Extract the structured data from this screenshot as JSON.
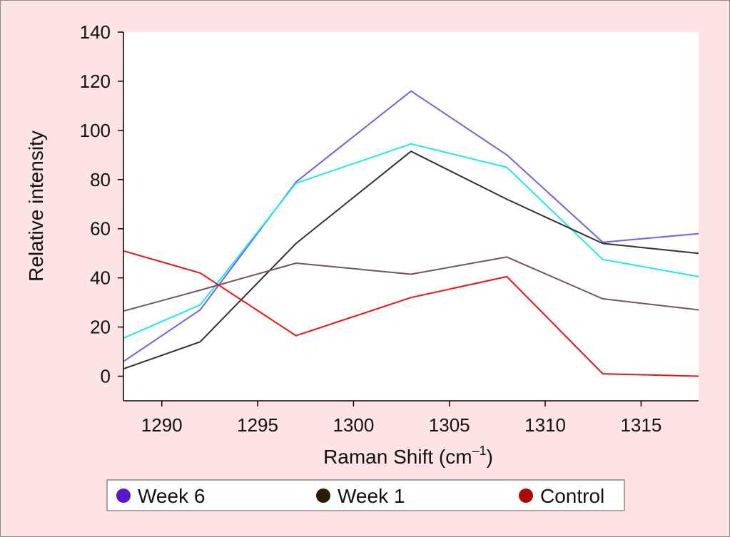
{
  "chart_data": {
    "type": "line",
    "title": "",
    "xlabel_main": "Raman Shift (cm",
    "xlabel_sup": "–1",
    "xlabel_end": ")",
    "ylabel": "Relative intensity",
    "xlim": [
      1288,
      1318
    ],
    "ylim": [
      -10,
      140
    ],
    "x_ticks": [
      "1290",
      "1295",
      "1300",
      "1305",
      "1310",
      "1315"
    ],
    "y_ticks": [
      "0",
      "20",
      "40",
      "60",
      "80",
      "100",
      "120",
      "140"
    ],
    "grid": false,
    "legend_position": "bottom",
    "x": [
      1288,
      1292,
      1297,
      1303,
      1308,
      1313,
      1318
    ],
    "series": [
      {
        "name": "Week 6",
        "color": "#7060f0",
        "legend_color": "#5a16c8",
        "in_legend": true,
        "values": [
          6,
          27,
          79,
          116,
          90,
          54.5,
          58
        ]
      },
      {
        "name": "",
        "color": "#20e8f0",
        "in_legend": false,
        "values": [
          15.5,
          29,
          78.5,
          94.5,
          85,
          47.5,
          40.5
        ]
      },
      {
        "name": "Week 1",
        "color": "#303030",
        "legend_color": "#2a1d06",
        "in_legend": true,
        "values": [
          3,
          14,
          54,
          91.5,
          72,
          54,
          50
        ]
      },
      {
        "name": "",
        "color": "#7a5060",
        "in_legend": false,
        "values": [
          26.5,
          35,
          46,
          41.5,
          48.5,
          31.5,
          27
        ]
      },
      {
        "name": "Control",
        "color": "#f01010",
        "legend_color": "#a80a0a",
        "in_legend": true,
        "values": [
          51,
          42,
          16.5,
          32,
          40.5,
          1,
          0
        ]
      }
    ]
  }
}
